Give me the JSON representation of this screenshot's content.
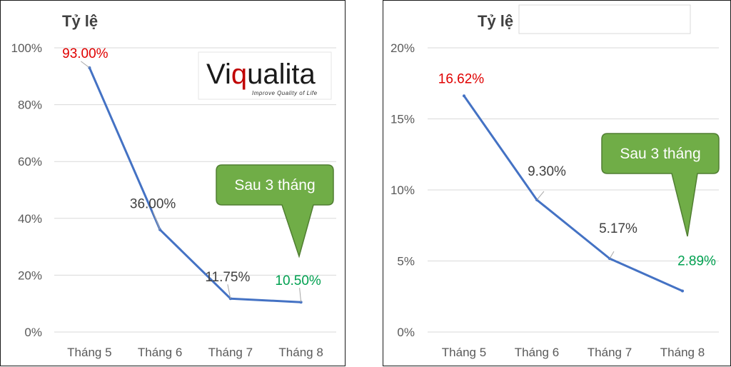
{
  "colors": {
    "line": "#4472c4",
    "grid": "#d9d9d9",
    "axis_text": "#595959",
    "label_default": "#404040",
    "label_red": "#e00000",
    "label_green": "#00a050",
    "callout_fill": "#70ad47",
    "callout_stroke": "#507e32",
    "logo_red": "#c00000"
  },
  "logo": {
    "prefix": "Vi",
    "q": "q",
    "suffix": "ualita",
    "tagline": "Improve Quality of Life"
  },
  "chart_data": [
    {
      "type": "line",
      "title": "Tỷ lệ",
      "categories": [
        "Tháng 5",
        "Tháng 6",
        "Tháng 7",
        "Tháng 8"
      ],
      "values": [
        93.0,
        36.0,
        11.75,
        10.5
      ],
      "data_labels": [
        "93.00%",
        "36.00%",
        "11.75%",
        "10.50%"
      ],
      "label_colors": [
        "red",
        "default",
        "default",
        "green"
      ],
      "yticks": [
        0,
        20,
        40,
        60,
        80,
        100
      ],
      "ytick_labels": [
        "0%",
        "20%",
        "40%",
        "60%",
        "80%",
        "100%"
      ],
      "ylim": [
        0,
        100
      ],
      "grid": true,
      "callout": "Sau 3 tháng"
    },
    {
      "type": "line",
      "title": "Tỷ lệ",
      "categories": [
        "Tháng 5",
        "Tháng 6",
        "Tháng 7",
        "Tháng 8"
      ],
      "values": [
        16.62,
        9.3,
        5.17,
        2.89
      ],
      "data_labels": [
        "16.62%",
        "9.30%",
        "5.17%",
        "2.89%"
      ],
      "label_colors": [
        "red",
        "default",
        "default",
        "green"
      ],
      "yticks": [
        0,
        5,
        10,
        15,
        20
      ],
      "ytick_labels": [
        "0%",
        "5%",
        "10%",
        "15%",
        "20%"
      ],
      "ylim": [
        0,
        20
      ],
      "grid": true,
      "callout": "Sau 3 tháng"
    }
  ]
}
